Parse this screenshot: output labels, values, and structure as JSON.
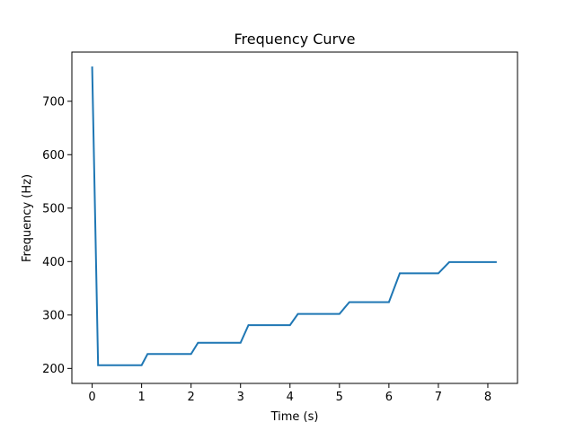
{
  "chart_data": {
    "type": "line",
    "title": "Frequency Curve",
    "xlabel": "Time (s)",
    "ylabel": "Frequency (Hz)",
    "xlim": [
      -0.41,
      8.6
    ],
    "ylim": [
      172,
      792
    ],
    "x_ticks": [
      0,
      1,
      2,
      3,
      4,
      5,
      6,
      7,
      8
    ],
    "y_ticks": [
      200,
      300,
      400,
      500,
      600,
      700
    ],
    "grid": false,
    "legend": "none",
    "series": [
      {
        "color": "#1f77b4",
        "x": [
          0.0,
          0.12,
          1.0,
          1.12,
          2.0,
          2.14,
          3.0,
          3.16,
          4.0,
          4.16,
          5.0,
          5.2,
          6.0,
          6.22,
          7.0,
          7.22,
          8.18
        ],
        "y": [
          765,
          206,
          206,
          227,
          227,
          248,
          248,
          281,
          281,
          302,
          302,
          324,
          324,
          378,
          378,
          399,
          399
        ]
      }
    ]
  }
}
